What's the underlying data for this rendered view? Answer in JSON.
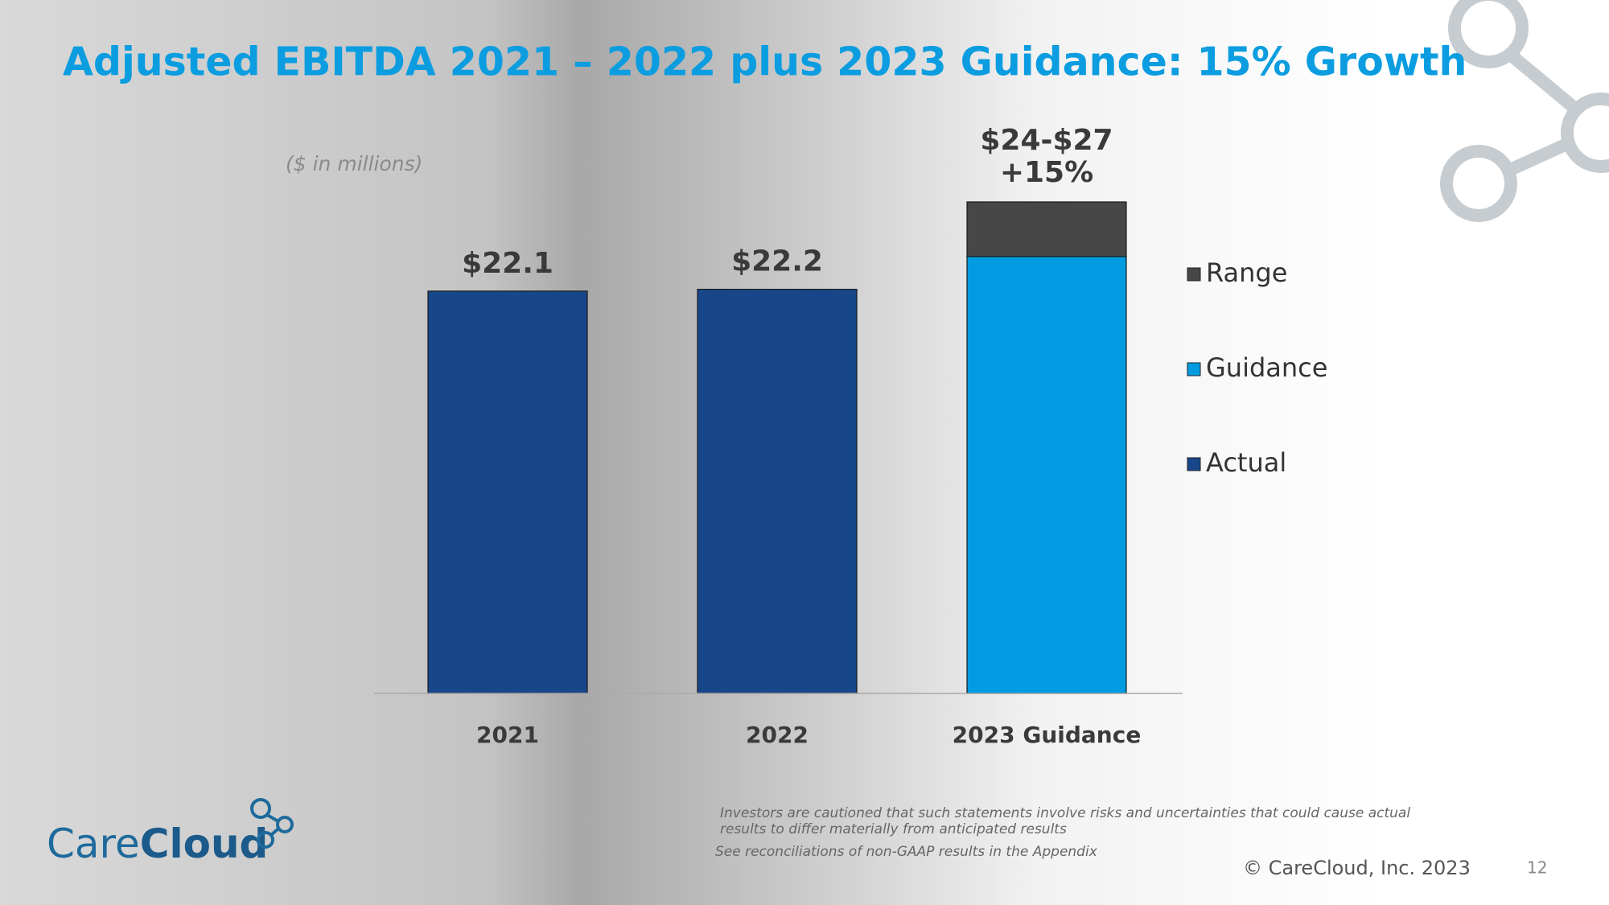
{
  "chart_data": {
    "type": "bar",
    "stacked": true,
    "title": "Adjusted EBITDA 2021 – 2022 plus 2023 Guidance: 15% Growth",
    "subtitle": "($ in millions)",
    "categories": [
      "2021",
      "2022",
      "2023 Guidance"
    ],
    "series": [
      {
        "name": "Actual",
        "color": "#17478a",
        "values": [
          22.1,
          22.2,
          null
        ],
        "value_labels": [
          "$22.1",
          "$22.2",
          null
        ]
      },
      {
        "name": "Guidance",
        "color": "#009be0",
        "values": [
          null,
          null,
          24
        ]
      },
      {
        "name": "Range",
        "color": "#474747",
        "values": [
          null,
          null,
          3
        ]
      }
    ],
    "annotations": [
      "$24-$27",
      "+15%"
    ]
  },
  "footnotes": [
    "Investors are cautioned that such statements involve risks and uncertainties that could cause actual",
    "results to differ materially from anticipated results",
    "See reconciliations of non-GAAP results in the Appendix"
  ],
  "copyright": "© CareCloud, Inc. 2023",
  "page_number": "12",
  "logo": [
    "Care",
    "Cloud"
  ]
}
